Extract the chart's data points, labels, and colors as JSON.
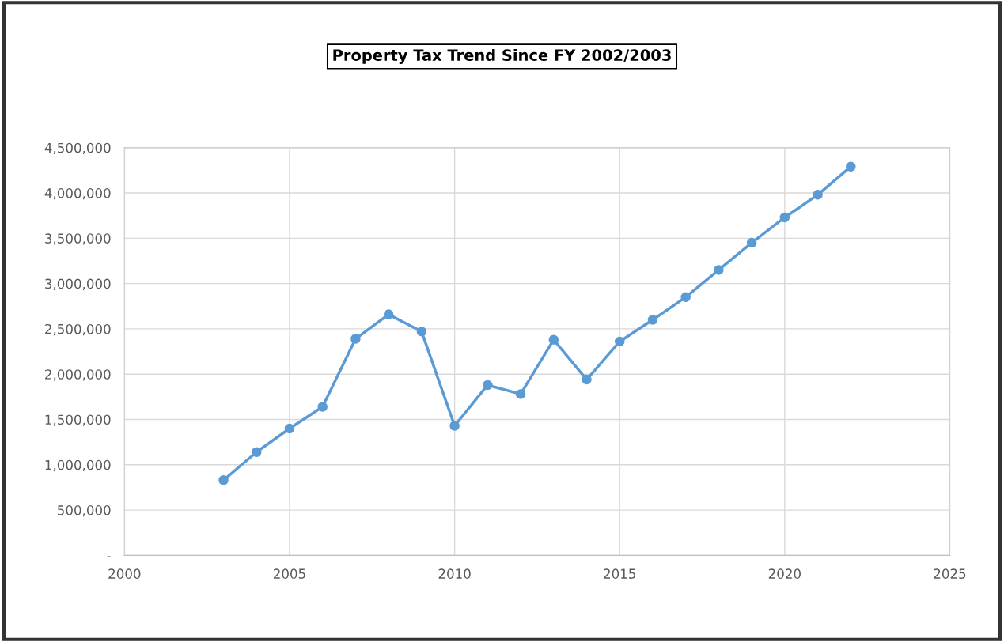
{
  "chart_data": {
    "type": "line",
    "title": "Property Tax Trend Since FY 2002/2003",
    "x": [
      2003,
      2004,
      2005,
      2006,
      2007,
      2008,
      2009,
      2010,
      2011,
      2012,
      2013,
      2014,
      2015,
      2016,
      2017,
      2018,
      2019,
      2020,
      2021,
      2022
    ],
    "series": [
      {
        "color": "#5b9bd5",
        "values": [
          830000,
          1140000,
          1400000,
          1640000,
          2390000,
          2660000,
          2470000,
          1430000,
          1880000,
          1780000,
          2380000,
          1940000,
          2360000,
          2600000,
          2850000,
          3150000,
          3450000,
          3730000,
          3980000,
          4290000
        ]
      }
    ],
    "xlim": [
      2000,
      2025
    ],
    "xticks": [
      2000,
      2005,
      2010,
      2015,
      2020,
      2025
    ],
    "ylim": [
      0,
      4500000
    ],
    "yticks": [
      {
        "value": 0,
        "label": "-"
      },
      {
        "value": 500000,
        "label": "500,000"
      },
      {
        "value": 1000000,
        "label": "1,000,000"
      },
      {
        "value": 1500000,
        "label": "1,500,000"
      },
      {
        "value": 2000000,
        "label": "2,000,000"
      },
      {
        "value": 2500000,
        "label": "2,500,000"
      },
      {
        "value": 3000000,
        "label": "3,000,000"
      },
      {
        "value": 3500000,
        "label": "3,500,000"
      },
      {
        "value": 4000000,
        "label": "4,000,000"
      },
      {
        "value": 4500000,
        "label": "4,500,000"
      }
    ],
    "grid": true,
    "marker": "circle",
    "line_style": "solid"
  }
}
